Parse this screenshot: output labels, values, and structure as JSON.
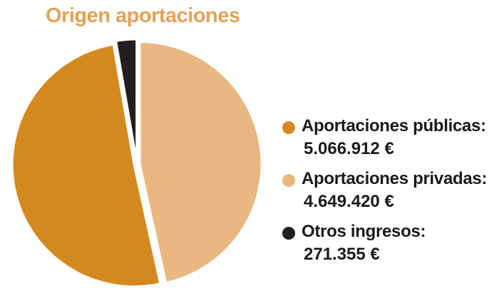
{
  "title": "Origen aportaciones",
  "colors": {
    "title": "#E2A25A",
    "slice_publicas": "#D4891F",
    "slice_privadas": "#E8B880",
    "slice_otros": "#231F20"
  },
  "chart_data": {
    "type": "pie",
    "title": "Origen aportaciones",
    "legend_position": "right",
    "slices": [
      {
        "label": "Aportaciones públicas:",
        "value": 5066912,
        "value_label": "5.066.912 €",
        "color": "#D4891F"
      },
      {
        "label": "Aportaciones privadas:",
        "value": 4649420,
        "value_label": "4.649.420 €",
        "color": "#E8B880"
      },
      {
        "label": "Otros ingresos:",
        "value": 271355,
        "value_label": "271.355 €",
        "color": "#231F20"
      }
    ]
  }
}
